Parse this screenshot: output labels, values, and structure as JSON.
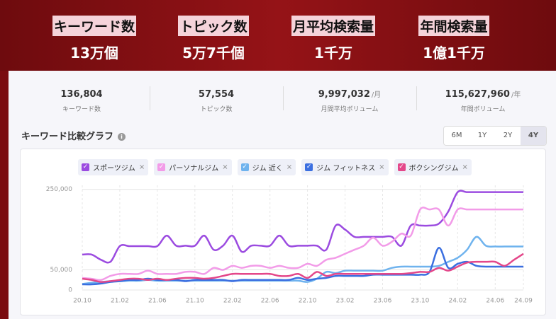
{
  "header": {
    "items": [
      {
        "label": "キーワード数",
        "value": "13万個"
      },
      {
        "label": "トピック数",
        "value": "5万7千個"
      },
      {
        "label": "月平均検索量",
        "value": "1千万"
      },
      {
        "label": "年間検索量",
        "value": "1億1千万"
      }
    ]
  },
  "stats": [
    {
      "value": "136,804",
      "unit": null,
      "label": "キーワード数"
    },
    {
      "value": "57,554",
      "unit": null,
      "label": "トピック数"
    },
    {
      "value": "9,997,032",
      "unit": "/月",
      "label": "月間平均ボリューム"
    },
    {
      "value": "115,627,960",
      "unit": "/年",
      "label": "年間ボリューム"
    }
  ],
  "section": {
    "title": "キーワード比較グラフ",
    "ranges": [
      "6M",
      "1Y",
      "2Y",
      "4Y"
    ]
  },
  "chart_data": {
    "type": "line",
    "grid": true,
    "categories": [
      "20.10",
      null,
      null,
      null,
      "21.02",
      null,
      null,
      null,
      "21.06",
      null,
      null,
      null,
      "21.10",
      null,
      null,
      null,
      "22.02",
      null,
      null,
      null,
      "22.06",
      null,
      null,
      null,
      "22.10",
      null,
      null,
      null,
      "23.02",
      null,
      null,
      null,
      "23.06",
      null,
      null,
      null,
      "23.10",
      null,
      null,
      null,
      "24.02",
      null,
      null,
      null,
      "24.06",
      null,
      null,
      "24.09"
    ],
    "ylim": [
      0,
      260000
    ],
    "yticks": [
      0,
      {
        "value": 50000,
        "label": "50,000"
      },
      {
        "value": 250000,
        "label": "250,000"
      }
    ],
    "series": [
      {
        "name": "スポーツジム",
        "color": "#9b4be0",
        "values": [
          88000,
          88000,
          75000,
          70000,
          109000,
          109000,
          109000,
          109000,
          109000,
          135000,
          110000,
          110000,
          110000,
          135000,
          100000,
          110000,
          135000,
          95000,
          110000,
          110000,
          110000,
          135000,
          110000,
          110000,
          110000,
          110000,
          100000,
          160000,
          150000,
          132000,
          132000,
          132000,
          132000,
          132000,
          110000,
          160000,
          160000,
          160000,
          165000,
          195000,
          243000,
          243000,
          243000,
          243000,
          243000,
          243000,
          243000,
          243000
        ]
      },
      {
        "name": "パーソナルジム",
        "color": "#f29be8",
        "values": [
          30000,
          28000,
          25000,
          35000,
          40000,
          40000,
          40000,
          48000,
          40000,
          40000,
          40000,
          45000,
          45000,
          40000,
          55000,
          50000,
          60000,
          55000,
          60000,
          60000,
          55000,
          60000,
          55000,
          55000,
          65000,
          60000,
          75000,
          80000,
          90000,
          100000,
          110000,
          130000,
          110000,
          120000,
          140000,
          135000,
          200000,
          200000,
          200000,
          160000,
          200000,
          200000,
          200000,
          200000,
          200000,
          200000,
          200000,
          200000
        ]
      },
      {
        "name": "ジム 近く",
        "color": "#6fb3ee",
        "values": [
          15000,
          18000,
          20000,
          22000,
          22000,
          23000,
          23000,
          25000,
          23000,
          23000,
          23000,
          23000,
          23000,
          23000,
          23000,
          23000,
          23000,
          23000,
          23000,
          23000,
          23000,
          23000,
          23000,
          23000,
          20000,
          28000,
          45000,
          42000,
          48000,
          48000,
          48000,
          48000,
          48000,
          55000,
          58000,
          58000,
          58000,
          58000,
          60000,
          70000,
          80000,
          100000,
          132000,
          110000,
          108000,
          108000,
          108000,
          108000
        ]
      },
      {
        "name": "ジム フィットネス",
        "color": "#3b6fe0",
        "values": [
          14000,
          14000,
          16000,
          20000,
          22000,
          25000,
          25000,
          28000,
          25000,
          25000,
          25000,
          22000,
          25000,
          25000,
          25000,
          25000,
          22000,
          25000,
          25000,
          25000,
          25000,
          25000,
          25000,
          30000,
          25000,
          28000,
          30000,
          35000,
          35000,
          35000,
          35000,
          38000,
          38000,
          38000,
          38000,
          38000,
          38000,
          45000,
          105000,
          55000,
          65000,
          70000,
          60000,
          58000,
          58000,
          58000,
          58000,
          58000
        ]
      },
      {
        "name": "ボクシングジム",
        "color": "#e4478a",
        "values": [
          28000,
          25000,
          20000,
          22000,
          25000,
          28000,
          28000,
          25000,
          28000,
          25000,
          28000,
          30000,
          30000,
          28000,
          30000,
          35000,
          40000,
          40000,
          40000,
          40000,
          40000,
          35000,
          35000,
          40000,
          30000,
          45000,
          35000,
          40000,
          40000,
          40000,
          40000,
          40000,
          40000,
          40000,
          40000,
          42000,
          45000,
          45000,
          55000,
          48000,
          58000,
          68000,
          70000,
          70000,
          70000,
          60000,
          75000,
          90000
        ]
      }
    ]
  }
}
